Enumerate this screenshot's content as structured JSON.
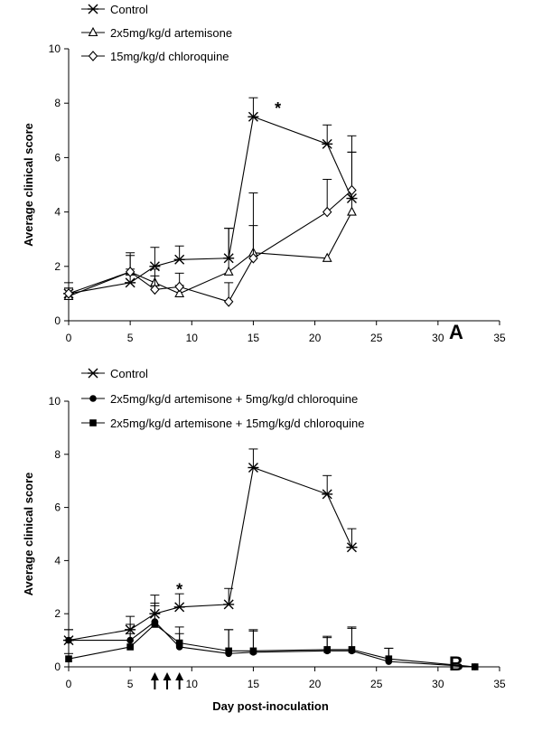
{
  "chart_data": [
    {
      "type": "line",
      "panel_label": "A",
      "xlabel": "",
      "ylabel": "Average clinical score",
      "xlim": [
        0,
        35
      ],
      "ylim": [
        0,
        10
      ],
      "xticks": [
        0,
        5,
        10,
        15,
        20,
        25,
        30,
        35
      ],
      "yticks": [
        0,
        2,
        4,
        6,
        8,
        10
      ],
      "grid": false,
      "legend_position": "top-left",
      "annotation": "*",
      "annotation_x": 17,
      "annotation_y": 7.6,
      "series": [
        {
          "name": "Control",
          "marker": "asterisk",
          "x": [
            0,
            5,
            7,
            9,
            13,
            15,
            21,
            23
          ],
          "y": [
            1.0,
            1.4,
            2.0,
            2.25,
            2.3,
            7.5,
            6.5,
            4.5
          ],
          "err": [
            0.4,
            0.5,
            0.7,
            0.5,
            1.1,
            0.7,
            0.7,
            1.7
          ]
        },
        {
          "name": "2x5mg/kg/d artemisone",
          "marker": "triangle",
          "x": [
            0,
            5,
            7,
            9,
            13,
            15,
            21,
            23
          ],
          "y": [
            0.9,
            1.8,
            1.4,
            1.0,
            1.8,
            2.5,
            2.3,
            4.0
          ],
          "err": [
            0.3,
            0.7,
            0.5,
            0.3,
            1.6,
            2.2,
            0,
            2.8
          ]
        },
        {
          "name": "15mg/kg/d chloroquine",
          "marker": "diamond",
          "x": [
            0,
            5,
            7,
            9,
            13,
            15,
            21,
            23
          ],
          "y": [
            1.0,
            1.8,
            1.15,
            1.25,
            0.7,
            2.3,
            4.0,
            4.8
          ],
          "err": [
            0.2,
            0.6,
            0.5,
            0.5,
            0.7,
            1.2,
            1.2,
            1.4
          ]
        }
      ]
    },
    {
      "type": "line",
      "panel_label": "B",
      "xlabel": "Day post-inoculation",
      "ylabel": "Average clinical score",
      "xlim": [
        0,
        35
      ],
      "ylim": [
        0,
        10
      ],
      "xticks": [
        0,
        5,
        10,
        15,
        20,
        25,
        30,
        35
      ],
      "yticks": [
        0,
        2,
        4,
        6,
        8,
        10
      ],
      "grid": false,
      "legend_position": "top-left",
      "annotation": "*",
      "annotation_x": 9,
      "annotation_y": 2.7,
      "treatment_arrow_days": [
        7,
        8,
        9
      ],
      "series": [
        {
          "name": "Control",
          "marker": "asterisk",
          "x": [
            0,
            5,
            7,
            9,
            13,
            15,
            21,
            23
          ],
          "y": [
            1.0,
            1.4,
            2.0,
            2.25,
            2.35,
            7.5,
            6.5,
            4.5
          ],
          "err": [
            0.4,
            0.5,
            0.7,
            0.5,
            0.6,
            0.7,
            0.7,
            0.7
          ]
        },
        {
          "name": "2x5mg/kg/d artemisone + 5mg/kg/d chloroquine",
          "marker": "circle",
          "x": [
            0,
            5,
            7,
            9,
            13,
            15,
            21,
            23,
            26,
            33
          ],
          "y": [
            1.0,
            1.0,
            1.7,
            0.75,
            0.5,
            0.55,
            0.6,
            0.6,
            0.2,
            0.0
          ],
          "err": [
            0.4,
            0.6,
            0.7,
            0.5,
            0.9,
            0.8,
            0.5,
            0.9,
            0.5,
            0
          ]
        },
        {
          "name": "2x5mg/kg/d artemisone + 15mg/kg/d chloroquine",
          "marker": "square",
          "x": [
            0,
            5,
            7,
            9,
            13,
            15,
            21,
            23,
            26,
            33
          ],
          "y": [
            0.3,
            0.75,
            1.6,
            0.9,
            0.6,
            0.6,
            0.65,
            0.65,
            0.3,
            0.0
          ],
          "err": [
            0.2,
            0.5,
            0.7,
            0.6,
            0.8,
            0.8,
            0.5,
            0.8,
            0.4,
            0
          ]
        }
      ]
    }
  ]
}
